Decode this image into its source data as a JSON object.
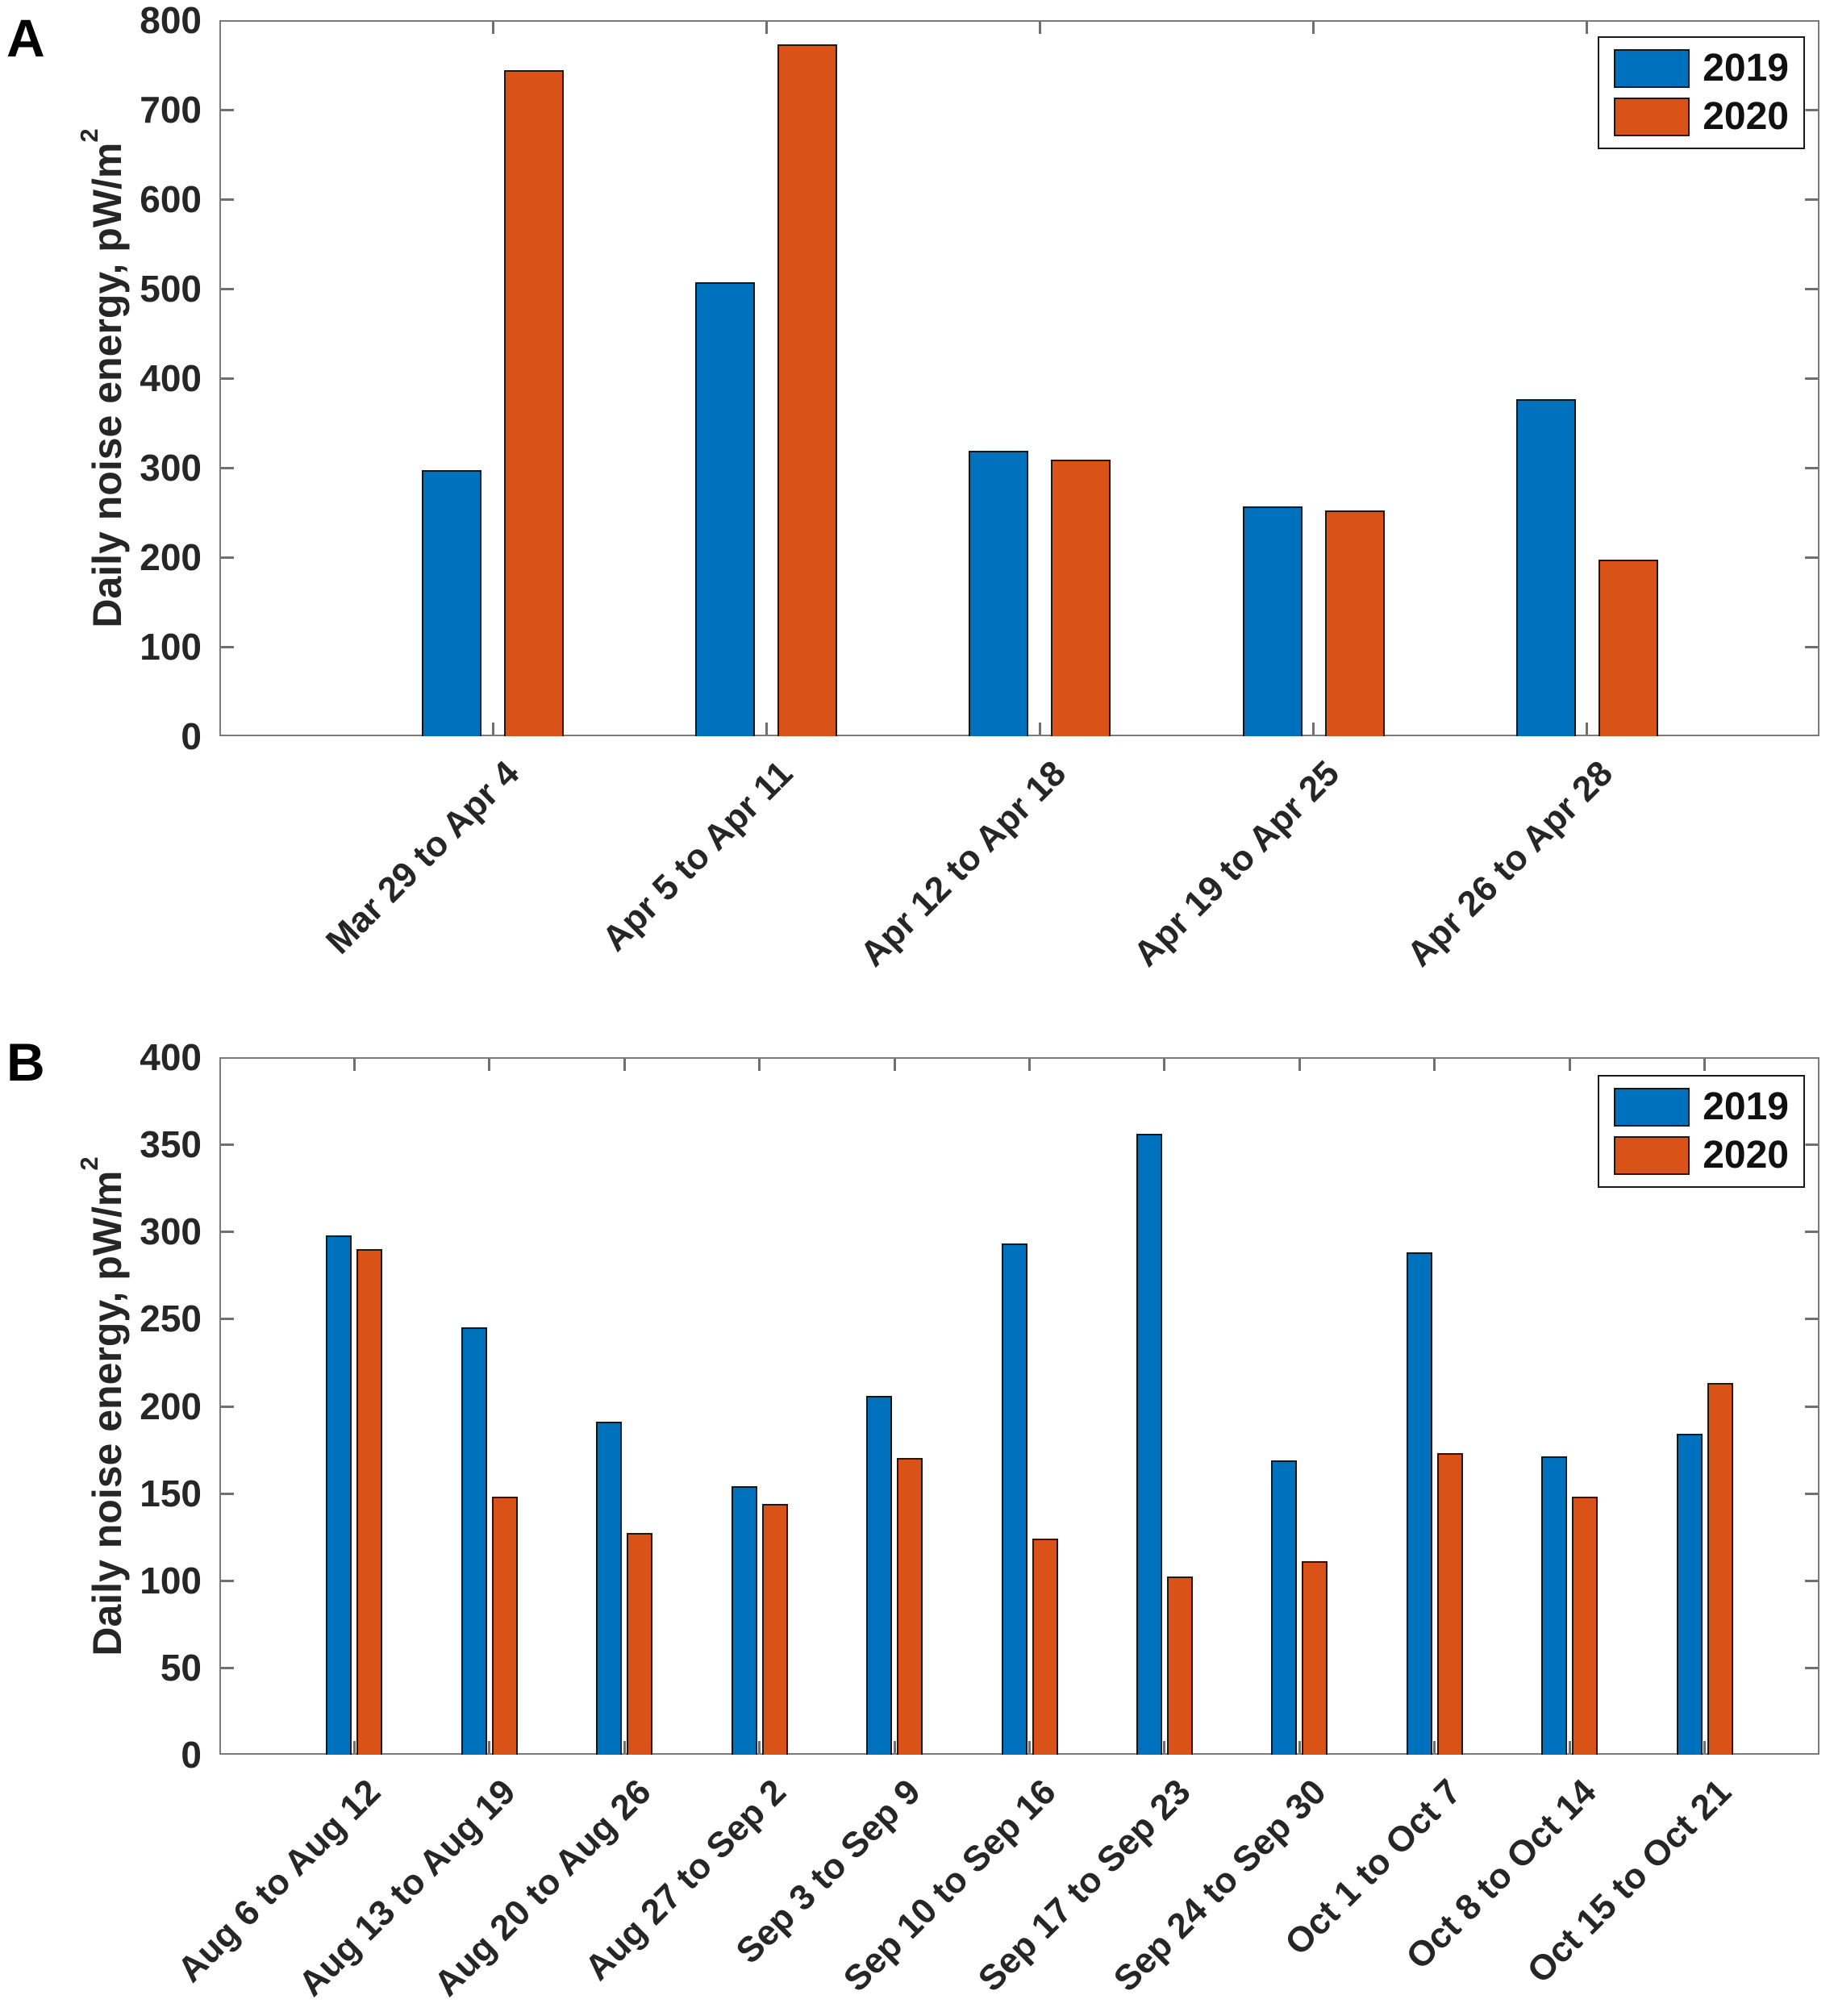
{
  "chart_data": [
    {
      "type": "bar",
      "panel_label": "A",
      "title": "",
      "ylabel_main": "Daily noise energy, pW/m",
      "ylabel_exponent": "2",
      "ylabel_full": "Daily noise energy, pW/m²",
      "xlabel": "",
      "ylim": [
        0,
        800
      ],
      "yticks": [
        0,
        100,
        200,
        300,
        400,
        500,
        600,
        700,
        800
      ],
      "grid": false,
      "legend_position": "top-right",
      "categories": [
        "Mar 29 to Apr 4",
        "Apr 5 to Apr 11",
        "Apr 12 to Apr 18",
        "Apr 19 to Apr 25",
        "Apr 26 to Apr 28"
      ],
      "series": [
        {
          "name": "2019",
          "color": "#0072BD",
          "values": [
            297,
            507,
            319,
            257,
            377
          ]
        },
        {
          "name": "2020",
          "color": "#D95319",
          "values": [
            744,
            773,
            309,
            252,
            197
          ]
        }
      ]
    },
    {
      "type": "bar",
      "panel_label": "B",
      "title": "",
      "ylabel_main": "Daily noise energy, pW/m",
      "ylabel_exponent": "2",
      "ylabel_full": "Daily noise energy, pW/m²",
      "xlabel": "",
      "ylim": [
        0,
        400
      ],
      "yticks": [
        0,
        50,
        100,
        150,
        200,
        250,
        300,
        350,
        400
      ],
      "grid": false,
      "legend_position": "top-right",
      "categories": [
        "Aug 6 to Aug 12",
        "Aug 13 to Aug 19",
        "Aug 20 to Aug 26",
        "Aug 27 to Sep 2",
        "Sep 3 to Sep 9",
        "Sep 10 to Sep 16",
        "Sep 17 to Sep 23",
        "Sep 24 to Sep 30",
        "Oct 1 to Oct 7",
        "Oct 8 to Oct 14",
        "Oct 15 to Oct 21"
      ],
      "series": [
        {
          "name": "2019",
          "color": "#0072BD",
          "values": [
            298,
            245,
            191,
            154,
            206,
            293,
            356,
            169,
            288,
            171,
            184
          ]
        },
        {
          "name": "2020",
          "color": "#D95319",
          "values": [
            290,
            148,
            127,
            144,
            170,
            124,
            102,
            111,
            173,
            148,
            213
          ]
        }
      ]
    }
  ]
}
